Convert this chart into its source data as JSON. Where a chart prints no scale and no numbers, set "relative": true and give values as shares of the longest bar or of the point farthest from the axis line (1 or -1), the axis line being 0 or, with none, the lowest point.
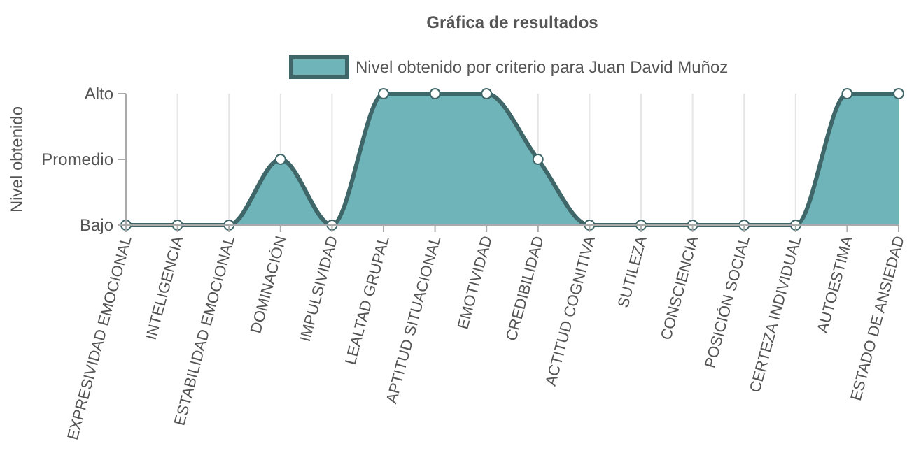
{
  "chart_data": {
    "type": "area",
    "title": "Gráfica de resultados",
    "ylabel": "Nivel obtenido",
    "categories": [
      "EXPRESIVIDAD EMOCIONAL",
      "INTELIGENCIA",
      "ESTABILIDAD EMOCIONAL",
      "DOMINACIÓN",
      "IMPULSIVIDAD",
      "LEALTAD GRUPAL",
      "APTITUD SITUACIONAL",
      "EMOTIVIDAD",
      "CREDIBILIDAD",
      "ACTITUD COGNITIVA",
      "SUTILEZA",
      "CONSCIENCIA",
      "POSICIÓN SOCIAL",
      "CERTEZA INDIVIDUAL",
      "AUTOESTIMA",
      "ESTADO DE ANSIEDAD"
    ],
    "y_categories": [
      "Alto",
      "Promedio",
      "Bajo"
    ],
    "relative": true,
    "series": [
      {
        "name": "Nivel obtenido por criterio para Juan David Muñoz",
        "color": "#6fb4b8",
        "values": [
          0,
          0,
          0,
          0.5,
          0,
          1,
          1,
          1,
          0.5,
          0,
          0,
          0,
          0,
          0,
          1,
          1
        ]
      }
    ],
    "grid": "x",
    "legend": "top",
    "marker": "circle",
    "line_style": "solid"
  }
}
